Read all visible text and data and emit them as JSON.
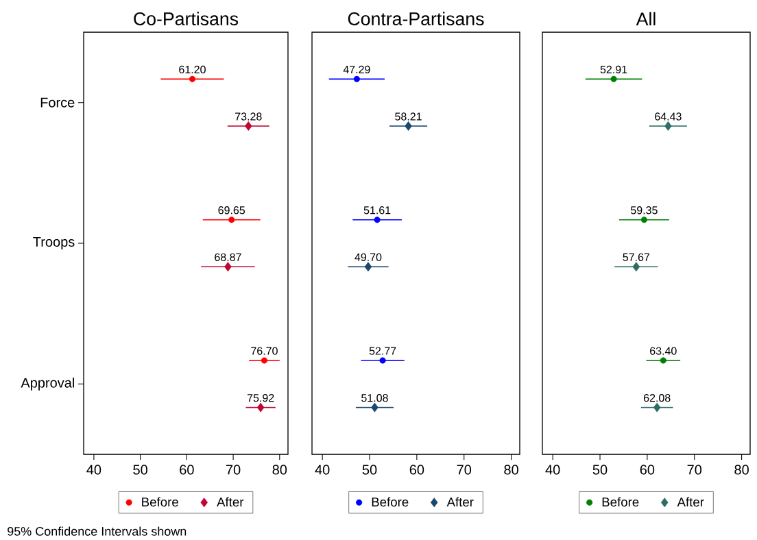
{
  "chart_data": [
    {
      "type": "scatter",
      "orientation": "horizontal",
      "title": "Co-Partisans",
      "categories": [
        "Force",
        "Troops",
        "Approval"
      ],
      "xlim": [
        37.8,
        81.8
      ],
      "xticks": [
        40,
        50,
        60,
        70,
        80
      ],
      "legend": "bottom",
      "annotations": [
        "95% Confidence Intervals shown"
      ],
      "series": [
        {
          "name": "Before",
          "color": "#ff0000",
          "marker": "circle",
          "values": [
            61.2,
            69.65,
            76.7
          ],
          "errors": [
            6.8,
            6.2,
            3.3
          ],
          "value_labels": [
            "61.20",
            "69.65",
            "76.70"
          ]
        },
        {
          "name": "After",
          "color": "#c10534",
          "marker": "diamond",
          "values": [
            73.28,
            68.87,
            75.92
          ],
          "errors": [
            4.5,
            5.8,
            3.2
          ],
          "value_labels": [
            "73.28",
            "68.87",
            "75.92"
          ]
        }
      ]
    },
    {
      "type": "scatter",
      "orientation": "horizontal",
      "title": "Contra-Partisans",
      "categories": [
        null,
        null,
        null
      ],
      "xlim": [
        37.8,
        81.8
      ],
      "xticks": [
        40,
        50,
        60,
        70,
        80
      ],
      "legend": "bottom",
      "tick_labels": "x",
      "series": [
        {
          "name": "Before",
          "color": "#0000ff",
          "marker": "circle",
          "values": [
            47.29,
            51.61,
            52.77
          ],
          "errors": [
            5.9,
            5.2,
            4.6
          ],
          "value_labels": [
            "47.29",
            "51.61",
            "52.77"
          ]
        },
        {
          "name": "After",
          "color": "#1a476f",
          "marker": "diamond",
          "values": [
            58.21,
            49.7,
            51.08
          ],
          "errors": [
            4.0,
            4.3,
            4.0
          ],
          "value_labels": [
            "58.21",
            "49.70",
            "51.08"
          ]
        }
      ]
    },
    {
      "type": "scatter",
      "orientation": "horizontal",
      "title": "All",
      "categories": [
        null,
        null,
        null
      ],
      "xlim": [
        37.8,
        81.8
      ],
      "xticks": [
        40,
        50,
        60,
        70,
        80
      ],
      "legend": "bottom",
      "tick_labels": "x",
      "series": [
        {
          "name": "Before",
          "color": "#008000",
          "marker": "circle",
          "values": [
            52.91,
            59.35,
            63.4
          ],
          "errors": [
            6.0,
            5.3,
            3.6
          ],
          "value_labels": [
            "52.91",
            "59.35",
            "63.40"
          ]
        },
        {
          "name": "After",
          "color": "#2d6d66",
          "marker": "diamond",
          "values": [
            64.43,
            57.67,
            62.08
          ],
          "errors": [
            4.0,
            4.6,
            3.4
          ],
          "value_labels": [
            "64.43",
            "57.67",
            "62.08"
          ]
        }
      ]
    }
  ]
}
